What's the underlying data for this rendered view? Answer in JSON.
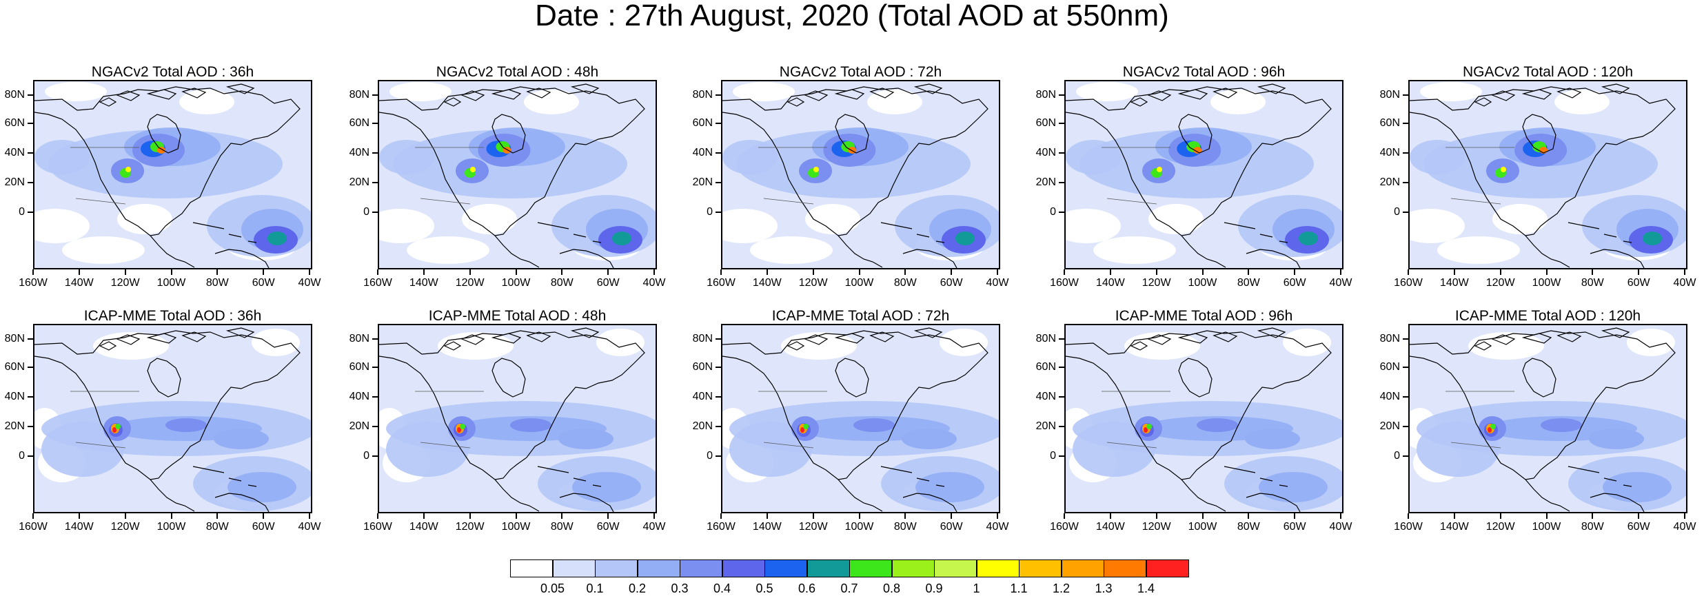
{
  "title": "Date : 27th August, 2020 (Total AOD at 550nm)",
  "axes": {
    "y_labels": [
      "80N",
      "60N",
      "40N",
      "20N",
      "0"
    ],
    "x_labels": [
      "160W",
      "140W",
      "120W",
      "100W",
      "80W",
      "60W",
      "40W"
    ]
  },
  "panels": [
    {
      "title": "NGACv2 Total AOD : 36h",
      "model": "NGACv2",
      "lead": "36h"
    },
    {
      "title": "NGACv2 Total AOD : 48h",
      "model": "NGACv2",
      "lead": "48h"
    },
    {
      "title": "NGACv2 Total AOD : 72h",
      "model": "NGACv2",
      "lead": "72h"
    },
    {
      "title": "NGACv2 Total AOD : 96h",
      "model": "NGACv2",
      "lead": "96h"
    },
    {
      "title": "NGACv2 Total AOD : 120h",
      "model": "NGACv2",
      "lead": "120h"
    },
    {
      "title": "ICAP-MME Total AOD : 36h",
      "model": "ICAP-MME",
      "lead": "36h"
    },
    {
      "title": "ICAP-MME Total AOD : 48h",
      "model": "ICAP-MME",
      "lead": "48h"
    },
    {
      "title": "ICAP-MME Total AOD : 72h",
      "model": "ICAP-MME",
      "lead": "72h"
    },
    {
      "title": "ICAP-MME Total AOD : 96h",
      "model": "ICAP-MME",
      "lead": "96h"
    },
    {
      "title": "ICAP-MME Total AOD : 120h",
      "model": "ICAP-MME",
      "lead": "120h"
    }
  ],
  "colorbar": {
    "colors": [
      "#ffffff",
      "#d6e0fb",
      "#b4c6f7",
      "#93aef5",
      "#7b8ff0",
      "#5e67ec",
      "#1c63f0",
      "#129a98",
      "#3ce61a",
      "#9bf01c",
      "#c6f54b",
      "#ffff00",
      "#ffc000",
      "#ffa200",
      "#ff7a00",
      "#ff2020"
    ],
    "labels": [
      "0.05",
      "0.1",
      "0.2",
      "0.3",
      "0.4",
      "0.5",
      "0.6",
      "0.7",
      "0.8",
      "0.9",
      "1",
      "1.1",
      "1.2",
      "1.3",
      "1.4"
    ]
  }
}
